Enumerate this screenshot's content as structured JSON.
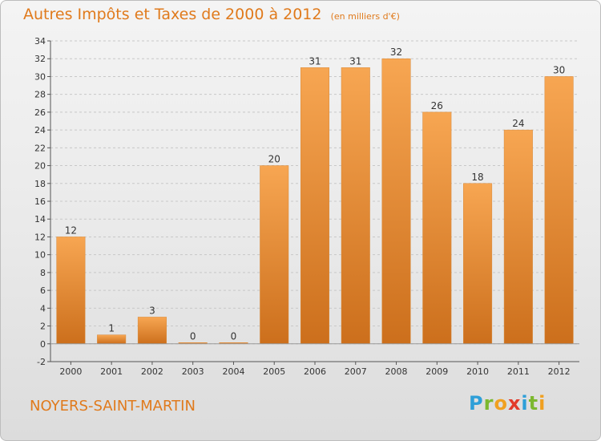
{
  "header": {
    "title": "Autres Impôts et Taxes de 2000 à 2012",
    "subtitle": "(en milliers d'€)"
  },
  "footer": {
    "commune": "NOYERS-SAINT-MARTIN",
    "brand": "Proxiti",
    "brand_letters": [
      {
        "ch": "P",
        "color": "#2e9fd8"
      },
      {
        "ch": "r",
        "color": "#7cb82f"
      },
      {
        "ch": "o",
        "color": "#f0a020"
      },
      {
        "ch": "x",
        "color": "#e23a2a"
      },
      {
        "ch": "i",
        "color": "#2e9fd8"
      },
      {
        "ch": "t",
        "color": "#7cb82f"
      },
      {
        "ch": "i",
        "color": "#f0a020"
      }
    ]
  },
  "colors": {
    "accent": "#e07a1c",
    "bar_top": "#f7a652",
    "bar_bottom": "#cc6f1c",
    "axis": "#555555",
    "grid": "#c8c8c8"
  },
  "chart_data": {
    "type": "bar",
    "title": "Autres Impôts et Taxes de 2000 à 2012",
    "subtitle": "(en milliers d'€)",
    "categories": [
      "2000",
      "2001",
      "2002",
      "2003",
      "2004",
      "2005",
      "2006",
      "2007",
      "2008",
      "2009",
      "2010",
      "2011",
      "2012"
    ],
    "values": [
      12,
      1,
      3,
      0,
      0,
      20,
      31,
      31,
      32,
      26,
      18,
      24,
      30
    ],
    "data_labels": [
      "12",
      "1",
      "3",
      "0",
      "0",
      "20",
      "31",
      "31",
      "32",
      "26",
      "18",
      "24",
      "30"
    ],
    "ylim": [
      -2,
      34
    ],
    "yticks": [
      -2,
      0,
      2,
      4,
      6,
      8,
      10,
      12,
      14,
      16,
      18,
      20,
      22,
      24,
      26,
      28,
      30,
      32,
      34
    ],
    "grid": "horizontal dashed",
    "xlabel": "",
    "ylabel": ""
  }
}
